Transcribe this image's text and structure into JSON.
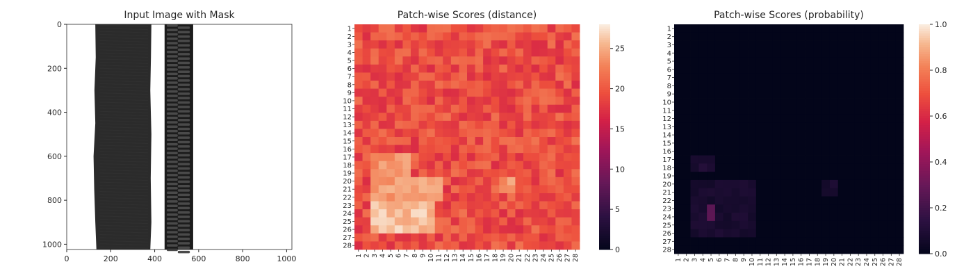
{
  "chart_data": [
    {
      "type": "image",
      "title": "Input Image with Mask",
      "xlim": [
        0,
        1024
      ],
      "ylim": [
        1024,
        0
      ],
      "xticks": [
        0,
        200,
        400,
        600,
        800,
        1000
      ],
      "yticks": [
        0,
        200,
        400,
        600,
        800,
        1000
      ],
      "colors": {
        "fabric": "#2b2b2b",
        "zipper": "#1c1c1c",
        "background": "#ffffff"
      }
    },
    {
      "type": "heatmap",
      "title": "Patch-wise Scores (distance)",
      "rows": 28,
      "cols": 28,
      "colorbar": {
        "min": 0,
        "max": 28,
        "ticks": [
          0,
          5,
          10,
          15,
          20,
          25
        ]
      },
      "colormap": "rocket",
      "base_level": 19.5,
      "hot_regions": [
        {
          "rows": [
            17,
            19
          ],
          "cols": [
            3,
            7
          ],
          "value": 24
        },
        {
          "rows": [
            20,
            22
          ],
          "cols": [
            3,
            11
          ],
          "value": 24.5
        },
        {
          "rows": [
            23,
            26
          ],
          "cols": [
            3,
            10
          ],
          "value": 26
        },
        {
          "rows": [
            20,
            21
          ],
          "cols": [
            19,
            20
          ],
          "value": 24
        }
      ]
    },
    {
      "type": "heatmap",
      "title": "Patch-wise Scores (probability)",
      "rows": 28,
      "cols": 28,
      "colorbar": {
        "min": 0.0,
        "max": 1.0,
        "ticks": [
          "0.0",
          "0.2",
          "0.4",
          "0.6",
          "0.8",
          "1.0"
        ]
      },
      "colormap": "rocket",
      "base_level": 0.0,
      "hot_regions": [
        {
          "rows": [
            17,
            18
          ],
          "cols": [
            3,
            5
          ],
          "value": 0.1
        },
        {
          "rows": [
            20,
            26
          ],
          "cols": [
            3,
            10
          ],
          "value": 0.08
        },
        {
          "rows": [
            23,
            24
          ],
          "cols": [
            5,
            5
          ],
          "value": 0.35
        },
        {
          "rows": [
            20,
            21
          ],
          "cols": [
            19,
            20
          ],
          "value": 0.08
        }
      ]
    }
  ]
}
